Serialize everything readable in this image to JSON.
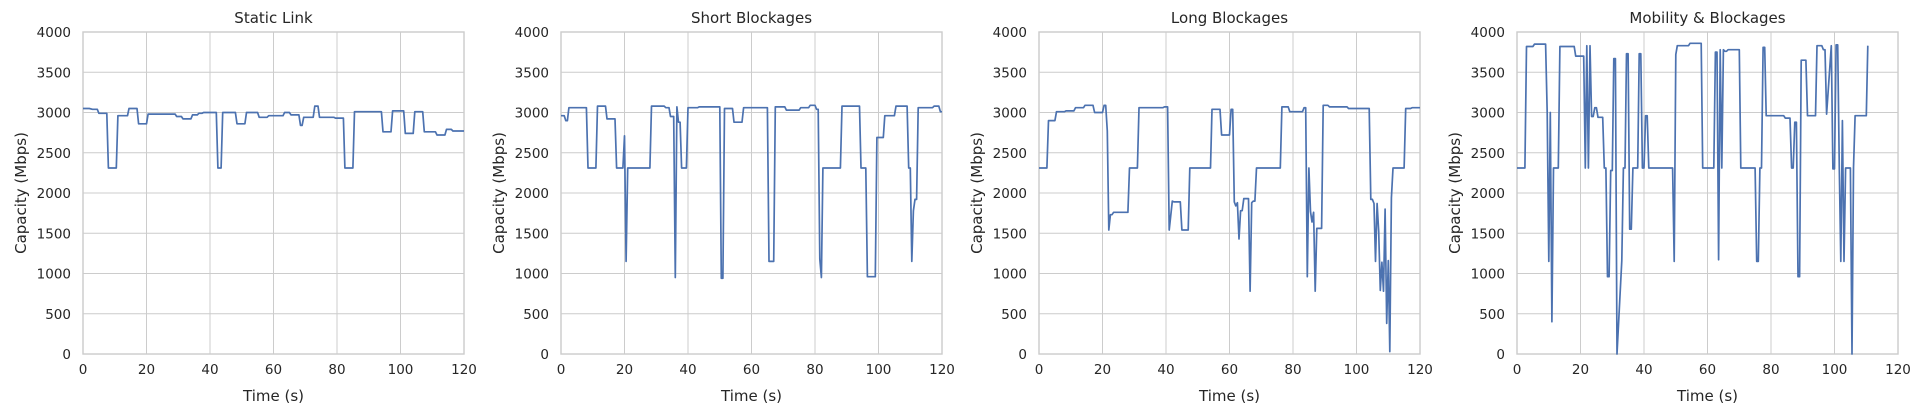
{
  "chart_data": [
    {
      "type": "line",
      "title": "Static Link",
      "xlabel": "Time (s)",
      "ylabel": "Capacity (Mbps)",
      "xlim": [
        0,
        120
      ],
      "ylim": [
        0,
        4000
      ],
      "xticks": [
        "0",
        "20",
        "40",
        "60",
        "80",
        "100",
        "120"
      ],
      "yticks": [
        "0",
        "500",
        "1000",
        "1500",
        "2000",
        "2500",
        "3000",
        "3500",
        "4000"
      ],
      "grid": true,
      "series": [
        {
          "color": "#4c72b0",
          "x": [
            0,
            2,
            3,
            4.5,
            5,
            7.5,
            8,
            10.5,
            11,
            14,
            14.5,
            17,
            17.5,
            20,
            20.5,
            29,
            29.5,
            31,
            31.5,
            34,
            34.5,
            36,
            36.5,
            37.5,
            38,
            42,
            42.5,
            43.5,
            44,
            48,
            48.5,
            51,
            51.5,
            55,
            55.5,
            58,
            58.5,
            63,
            63.5,
            65,
            65.5,
            68,
            68.5,
            69,
            69.5,
            72.5,
            73,
            74,
            74.5,
            79,
            79.5,
            82,
            82.5,
            85,
            85.5,
            94,
            94.5,
            97,
            97.5,
            101,
            101.5,
            104,
            104.5,
            107,
            107.5,
            111,
            111.5,
            114,
            114.5,
            116,
            116.5,
            120
          ],
          "y": [
            3050,
            3050,
            3040,
            3040,
            2990,
            2990,
            2310,
            2310,
            2960,
            2960,
            3050,
            3050,
            2860,
            2860,
            2980,
            2980,
            2950,
            2950,
            2920,
            2920,
            2970,
            2970,
            2990,
            2990,
            3000,
            3000,
            2310,
            2310,
            3000,
            3000,
            2860,
            2860,
            3000,
            3000,
            2940,
            2940,
            2960,
            2960,
            3000,
            3000,
            2970,
            2970,
            2840,
            2840,
            2940,
            2940,
            3080,
            3080,
            2940,
            2940,
            2930,
            2930,
            2310,
            2310,
            3010,
            3010,
            2760,
            2760,
            3020,
            3020,
            2740,
            2740,
            3010,
            3010,
            2760,
            2760,
            2720,
            2720,
            2790,
            2790,
            2770,
            2770
          ]
        }
      ]
    },
    {
      "type": "line",
      "title": "Short Blockages",
      "xlabel": "Time (s)",
      "ylabel": "Capacity (Mbps)",
      "xlim": [
        0,
        120
      ],
      "ylim": [
        0,
        4000
      ],
      "xticks": [
        "0",
        "20",
        "40",
        "60",
        "80",
        "100",
        "120"
      ],
      "yticks": [
        "0",
        "500",
        "1000",
        "1500",
        "2000",
        "2500",
        "3000",
        "3500",
        "4000"
      ],
      "grid": true,
      "series": [
        {
          "color": "#4c72b0",
          "x": [
            0,
            1,
            1.5,
            2,
            2.5,
            8,
            8.5,
            11,
            11.5,
            14,
            14.5,
            17,
            17.5,
            19.5,
            20,
            20.5,
            21,
            21.5,
            22,
            28,
            28.5,
            32.5,
            33,
            34,
            34.5,
            35.5,
            36,
            36.5,
            37,
            37.5,
            38,
            39.5,
            40,
            43,
            43.5,
            50,
            50.5,
            51,
            51.5,
            54,
            54.5,
            57,
            57.5,
            65,
            65.5,
            67,
            67.5,
            70.5,
            71,
            75,
            75.5,
            78,
            78.5,
            80,
            80.5,
            81,
            81.5,
            82,
            82.5,
            88,
            88.5,
            94,
            94.5,
            96,
            96.5,
            99,
            99.5,
            101.5,
            102,
            105,
            105.5,
            109,
            109.5,
            110,
            110.5,
            111,
            111.5,
            112,
            112.5,
            117,
            117.5,
            119,
            119.5,
            120
          ],
          "y": [
            2960,
            2960,
            2900,
            2900,
            3060,
            3060,
            2310,
            2310,
            3080,
            3080,
            2920,
            2920,
            2310,
            2310,
            2710,
            1150,
            2310,
            2310,
            2310,
            2310,
            3080,
            3080,
            3060,
            3060,
            2950,
            2950,
            950,
            3070,
            2880,
            2880,
            2310,
            2310,
            3060,
            3060,
            3070,
            3070,
            940,
            940,
            3050,
            3050,
            2880,
            2880,
            3060,
            3060,
            1150,
            1150,
            3070,
            3070,
            3030,
            3030,
            3060,
            3060,
            3090,
            3090,
            3040,
            3040,
            1180,
            950,
            2310,
            2310,
            3080,
            3080,
            2310,
            2310,
            960,
            960,
            2690,
            2690,
            2960,
            2960,
            3080,
            3080,
            2310,
            2310,
            1150,
            1780,
            1920,
            1920,
            3060,
            3060,
            3080,
            3080,
            3010,
            3010
          ]
        }
      ]
    },
    {
      "type": "line",
      "title": "Long Blockages",
      "xlabel": "Time (s)",
      "ylabel": "Capacity (Mbps)",
      "xlim": [
        0,
        120
      ],
      "ylim": [
        0,
        4000
      ],
      "xticks": [
        "0",
        "20",
        "40",
        "60",
        "80",
        "100",
        "120"
      ],
      "yticks": [
        "0",
        "500",
        "1000",
        "1500",
        "2000",
        "2500",
        "3000",
        "3500",
        "4000"
      ],
      "grid": true,
      "series": [
        {
          "color": "#4c72b0",
          "x": [
            0,
            2.5,
            3,
            5,
            5.5,
            8,
            8.5,
            11,
            11.5,
            14,
            14.5,
            17,
            17.5,
            20,
            20.5,
            21,
            21.5,
            22,
            22.5,
            23,
            23.5,
            28,
            28.5,
            31,
            31.5,
            39,
            39.5,
            40.5,
            41,
            42,
            42.5,
            44.5,
            45,
            47,
            47.5,
            54,
            54.5,
            57,
            57.5,
            60,
            60.5,
            61,
            61.5,
            62,
            62.5,
            63,
            63.5,
            64,
            64.5,
            66,
            66.5,
            67,
            67.5,
            68,
            68.5,
            76,
            76.5,
            78.5,
            79,
            83,
            83.5,
            84,
            84.5,
            85,
            85.5,
            86,
            86.5,
            87,
            87.5,
            89,
            89.5,
            91,
            91.5,
            97,
            97.5,
            104,
            104.5,
            105,
            105.5,
            106,
            106.5,
            107,
            107.5,
            108,
            108.5,
            109,
            109.5,
            110,
            110.5,
            111,
            111.5,
            115,
            115.5,
            117,
            117.5,
            120
          ],
          "y": [
            2310,
            2310,
            2900,
            2900,
            3010,
            3010,
            3020,
            3020,
            3060,
            3060,
            3090,
            3090,
            3000,
            3000,
            3090,
            3090,
            2770,
            1540,
            1730,
            1730,
            1760,
            1760,
            2310,
            2310,
            3060,
            3060,
            3070,
            3070,
            1540,
            1900,
            1890,
            1890,
            1540,
            1540,
            2310,
            2310,
            3040,
            3040,
            2720,
            2720,
            3040,
            3040,
            1890,
            1840,
            1880,
            1430,
            1780,
            1780,
            1930,
            1930,
            780,
            1880,
            1900,
            1900,
            2310,
            2310,
            3070,
            3070,
            3010,
            3010,
            3060,
            3060,
            960,
            2310,
            1770,
            1640,
            1760,
            780,
            1560,
            1560,
            3090,
            3090,
            3070,
            3070,
            3050,
            3050,
            1920,
            1920,
            1870,
            1150,
            1870,
            1520,
            790,
            1140,
            780,
            1800,
            380,
            1160,
            30,
            1940,
            2310,
            2310,
            3050,
            3050,
            3060,
            3060
          ]
        }
      ]
    },
    {
      "type": "line",
      "title": "Mobility & Blockages",
      "xlabel": "Time (s)",
      "ylabel": "Capacity (Mbps)",
      "xlim": [
        0,
        120
      ],
      "ylim": [
        0,
        4000
      ],
      "xticks": [
        "0",
        "20",
        "40",
        "60",
        "80",
        "100",
        "120"
      ],
      "yticks": [
        "0",
        "500",
        "1000",
        "1500",
        "2000",
        "2500",
        "3000",
        "3500",
        "4000"
      ],
      "grid": true,
      "series": [
        {
          "color": "#4c72b0",
          "x": [
            0,
            2.5,
            3,
            5,
            5.5,
            9,
            9.5,
            10,
            10.5,
            11,
            11.5,
            12,
            12.5,
            13,
            13.5,
            14.5,
            15,
            18,
            18.5,
            21,
            21.5,
            22,
            22.5,
            23,
            23.5,
            24,
            24.5,
            25,
            25.5,
            27,
            27.5,
            28,
            28.5,
            29,
            29.5,
            30,
            30.5,
            31,
            31.5,
            33,
            33.5,
            34,
            34.5,
            35,
            35.5,
            36,
            36.5,
            38,
            38.5,
            39,
            39.5,
            40,
            40.5,
            41,
            41.5,
            42,
            42.5,
            43,
            43.5,
            49,
            49.5,
            50,
            50.5,
            54,
            54.5,
            58,
            58.5,
            62,
            62.5,
            63,
            63.5,
            64,
            64.5,
            65,
            65.5,
            66,
            66.5,
            70,
            70.5,
            74,
            74.5,
            75,
            75.5,
            76,
            76.5,
            77,
            77.5,
            78,
            78.5,
            84,
            84.5,
            86,
            86.5,
            87,
            87.5,
            88,
            88.5,
            89,
            89.5,
            91,
            91.5,
            94,
            94.5,
            96,
            96.5,
            97,
            97.5,
            99,
            99.5,
            100,
            100.5,
            101,
            101.5,
            102,
            102.5,
            103,
            103.5,
            105,
            105.5,
            106,
            106.5,
            110,
            110.5
          ],
          "y": [
            2310,
            2310,
            3820,
            3820,
            3850,
            3850,
            3000,
            1150,
            3000,
            400,
            2310,
            2310,
            2310,
            2310,
            3820,
            3820,
            3820,
            3820,
            3700,
            3700,
            2310,
            3830,
            2310,
            3830,
            2950,
            2950,
            3060,
            3060,
            2940,
            2940,
            2310,
            2310,
            960,
            960,
            2280,
            2280,
            3670,
            3670,
            0,
            1160,
            2310,
            2310,
            3730,
            3730,
            1550,
            1550,
            2310,
            2310,
            3730,
            3730,
            2310,
            2310,
            2960,
            2960,
            2310,
            2310,
            2310,
            2310,
            2310,
            2310,
            1150,
            3720,
            3830,
            3830,
            3860,
            3860,
            2310,
            2310,
            3750,
            3750,
            1170,
            3780,
            2310,
            3780,
            3760,
            3760,
            3780,
            3780,
            2310,
            2310,
            2310,
            2310,
            1150,
            1150,
            2310,
            2310,
            3810,
            3810,
            2960,
            2960,
            2930,
            2930,
            2310,
            2310,
            2880,
            2880,
            960,
            960,
            3650,
            3650,
            2960,
            2960,
            3830,
            3830,
            3780,
            3780,
            2980,
            3830,
            2300,
            2300,
            3840,
            3840,
            2310,
            1150,
            2900,
            1150,
            2310,
            2310,
            0,
            2310,
            2960,
            2960,
            3830
          ]
        }
      ]
    }
  ]
}
